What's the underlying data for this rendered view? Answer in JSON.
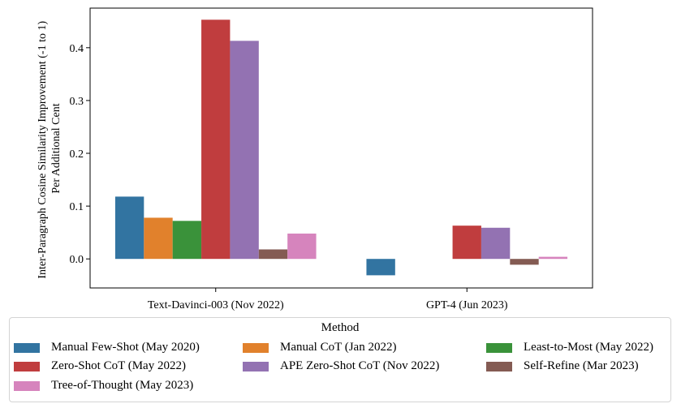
{
  "chart_data": {
    "type": "bar",
    "categories": [
      "Text-Davinci-003 (Nov 2022)",
      "GPT-4 (Jun 2023)"
    ],
    "ylabel_lines": [
      "Inter-Paragraph Cosine Similarity Improvement (-1 to 1)",
      "Per Additional Cent"
    ],
    "xlabel": "",
    "ylim": [
      -0.055,
      0.475
    ],
    "yticks": [
      0.0,
      0.1,
      0.2,
      0.3,
      0.4
    ],
    "ytick_labels": [
      "0.0",
      "0.1",
      "0.2",
      "0.3",
      "0.4"
    ],
    "grid": false,
    "legend": {
      "title": "Method",
      "placement": "bottom-center, below the axes, three columns"
    },
    "series": [
      {
        "name": "Manual Few-Shot (May 2020)",
        "color": "#3274a1",
        "values": [
          0.118,
          -0.031
        ]
      },
      {
        "name": "Manual CoT (Jan 2022)",
        "color": "#e1812c",
        "values": [
          0.078,
          null
        ]
      },
      {
        "name": "Least-to-Most (May 2022)",
        "color": "#3a923a",
        "values": [
          0.072,
          null
        ]
      },
      {
        "name": "Zero-Shot CoT (May 2022)",
        "color": "#c03d3e",
        "values": [
          0.453,
          0.063
        ]
      },
      {
        "name": "APE Zero-Shot CoT (Nov 2022)",
        "color": "#9372b2",
        "values": [
          0.413,
          0.059
        ]
      },
      {
        "name": "Self-Refine (Mar 2023)",
        "color": "#845b53",
        "values": [
          0.018,
          -0.011
        ]
      },
      {
        "name": "Tree-of-Thought (May 2023)",
        "color": "#d684bd",
        "values": [
          0.048,
          0.004
        ]
      }
    ]
  }
}
